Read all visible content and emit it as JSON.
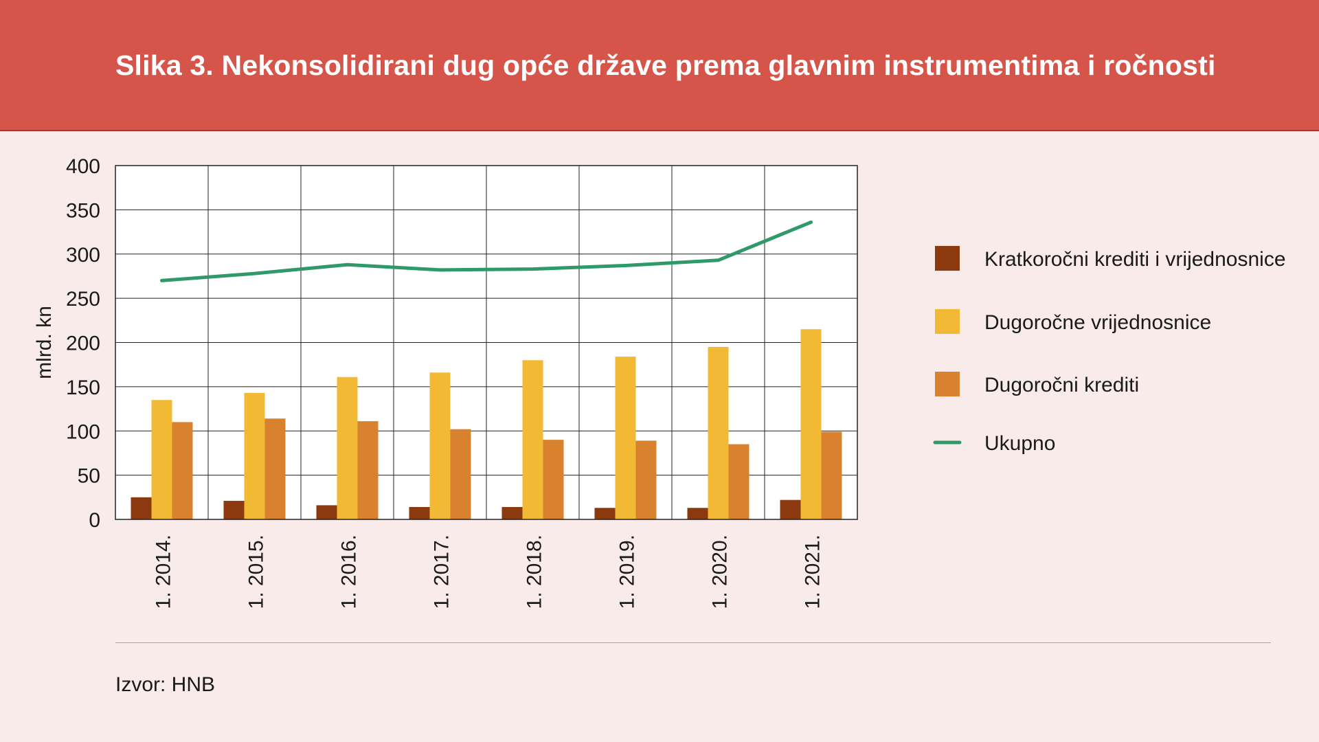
{
  "title": "Slika 3. Nekonsolidirani dug opće države prema glavnim instrumentima i ročnosti",
  "source": "Izvor: HNB",
  "colors": {
    "header_bg": "#d6554a",
    "page_bg": "#f9ebea",
    "short_term": "#8b3a0f",
    "long_term_securities": "#f2b935",
    "long_term_loans": "#d8812e",
    "total_line": "#2f9a68"
  },
  "chart_data": {
    "type": "bar",
    "title": "",
    "xlabel": "",
    "ylabel": "mlrd. kn",
    "ylim": [
      0,
      400
    ],
    "yticks": [
      0,
      50,
      100,
      150,
      200,
      250,
      300,
      350,
      400
    ],
    "grid": true,
    "legend_position": "right",
    "categories": [
      "1. 2014.",
      "1. 2015.",
      "1. 2016.",
      "1. 2017.",
      "1. 2018.",
      "1. 2019.",
      "1. 2020.",
      "1. 2021."
    ],
    "series": [
      {
        "name": "Kratkoročni krediti i vrijednosnice",
        "type": "bar",
        "color": "#8b3a0f",
        "values": [
          25,
          21,
          16,
          14,
          14,
          13,
          13,
          22
        ]
      },
      {
        "name": "Dugoročne vrijednosnice",
        "type": "bar",
        "color": "#f2b935",
        "values": [
          135,
          143,
          161,
          166,
          180,
          184,
          195,
          215
        ]
      },
      {
        "name": "Dugoročni krediti",
        "type": "bar",
        "color": "#d8812e",
        "values": [
          110,
          114,
          111,
          102,
          90,
          89,
          85,
          99
        ]
      },
      {
        "name": "Ukupno",
        "type": "line",
        "color": "#2f9a68",
        "values": [
          270,
          278,
          288,
          282,
          283,
          287,
          293,
          336
        ]
      }
    ]
  }
}
